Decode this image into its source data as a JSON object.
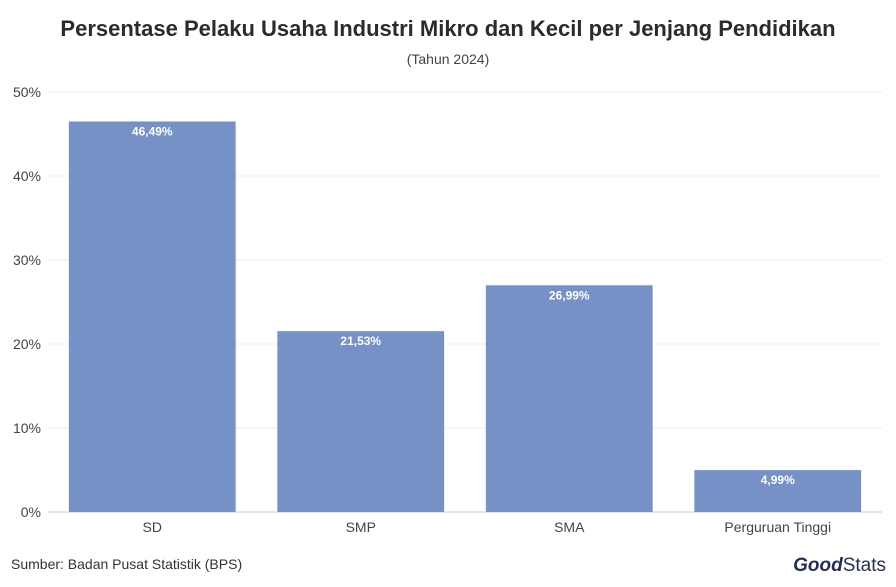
{
  "chart_data": {
    "type": "bar",
    "title": "Persentase Pelaku Usaha Industri Mikro dan Kecil per Jenjang Pendidikan",
    "subtitle": "(Tahun 2024)",
    "categories": [
      "SD",
      "SMP",
      "SMA",
      "Perguruan Tinggi"
    ],
    "values": [
      46.49,
      21.53,
      26.99,
      4.99
    ],
    "data_labels": [
      "46,49%",
      "21,53%",
      "26,99%",
      "4,99%"
    ],
    "y_ticks": [
      0,
      10,
      20,
      30,
      40,
      50
    ],
    "y_tick_labels": [
      "0%",
      "10%",
      "20%",
      "30%",
      "40%",
      "50%"
    ],
    "ylim": [
      0,
      50
    ],
    "grid": true,
    "bar_color": "#7591c6"
  },
  "footer": {
    "source": "Sumber: Badan Pusat Statistik (BPS)",
    "logo_good": "Good",
    "logo_stats": "Stats"
  }
}
